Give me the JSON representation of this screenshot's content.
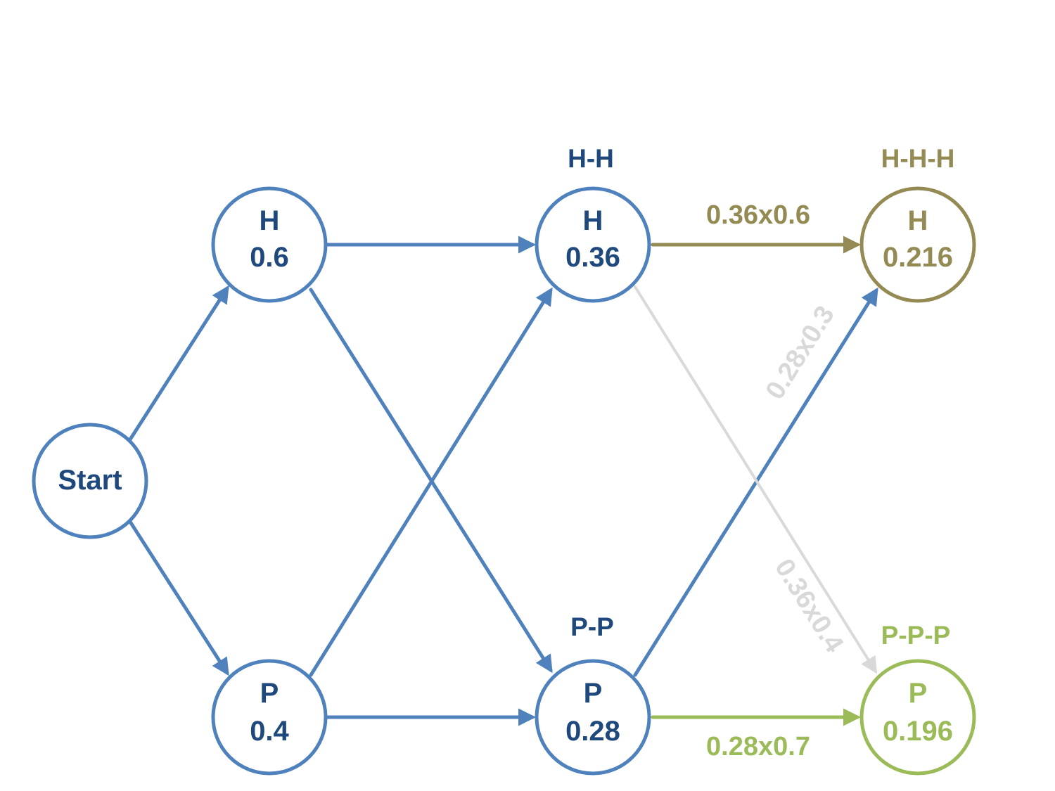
{
  "colors": {
    "blue_edge": "#4f81bd",
    "navy_text": "#1f497d",
    "olive": "#948a54",
    "green": "#9bbb59",
    "grey_faded": "#d9d9d9",
    "node_fill": "#ffffff"
  },
  "nodes": {
    "start": {
      "label": "Start"
    },
    "h1": {
      "letter": "H",
      "prob": "0.6"
    },
    "p1": {
      "letter": "P",
      "prob": "0.4"
    },
    "h2": {
      "letter": "H",
      "prob": "0.36"
    },
    "p2": {
      "letter": "P",
      "prob": "0.28"
    },
    "h3": {
      "letter": "H",
      "prob": "0.216"
    },
    "p3": {
      "letter": "P",
      "prob": "0.196"
    }
  },
  "state_labels": {
    "hh": "H-H",
    "pp": "P-P",
    "hhh": "H-H-H",
    "ppp": "P-P-P"
  },
  "edge_labels": {
    "hh_to_hhh": "0.36x0.6",
    "pp_to_hhh": "0.28x0.3",
    "hh_to_ppp": "0.36x0.4",
    "pp_to_ppp": "0.28x0.7"
  }
}
